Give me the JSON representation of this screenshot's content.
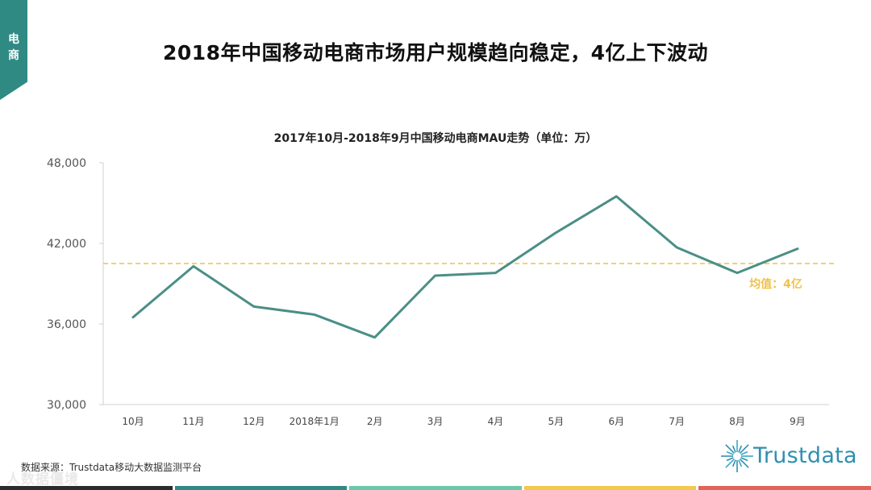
{
  "corner_tab": {
    "char1": "电",
    "char2": "商",
    "color": "#2f8a83"
  },
  "main_title": "2018年中国移动电商市场用户规模趋向稳定，4亿上下波动",
  "chart_data": {
    "type": "line",
    "title": "2017年10月-2018年9月中国移动电商MAU走势（单位：万）",
    "categories": [
      "10月",
      "11月",
      "12月",
      "2018年1月",
      "2月",
      "3月",
      "4月",
      "5月",
      "6月",
      "7月",
      "8月",
      "9月"
    ],
    "series": [
      {
        "values": [
          36500,
          40300,
          37300,
          36700,
          35000,
          39600,
          39800,
          42800,
          45500,
          41700,
          39800,
          41600
        ],
        "color": "#4a8f86"
      }
    ],
    "ylim": [
      30000,
      48000
    ],
    "yticks": [
      "48,000",
      "42,000",
      "36,000",
      "30,000"
    ],
    "ytick_values": [
      48000,
      42000,
      36000,
      30000
    ],
    "reference_line": {
      "value": 40500,
      "label": "均值：4亿",
      "color": "#f0c24a"
    },
    "grid": false
  },
  "footer": {
    "source": "数据来源：Trustdata移动大数据监测平台",
    "watermark": "人数据僵境"
  },
  "logo": {
    "text": "Trustdata",
    "color": "#2f8fb0"
  },
  "color_bar": [
    "#2b2b2b",
    "#2f8a83",
    "#6cc8a8",
    "#f2c94c",
    "#e0645a"
  ]
}
